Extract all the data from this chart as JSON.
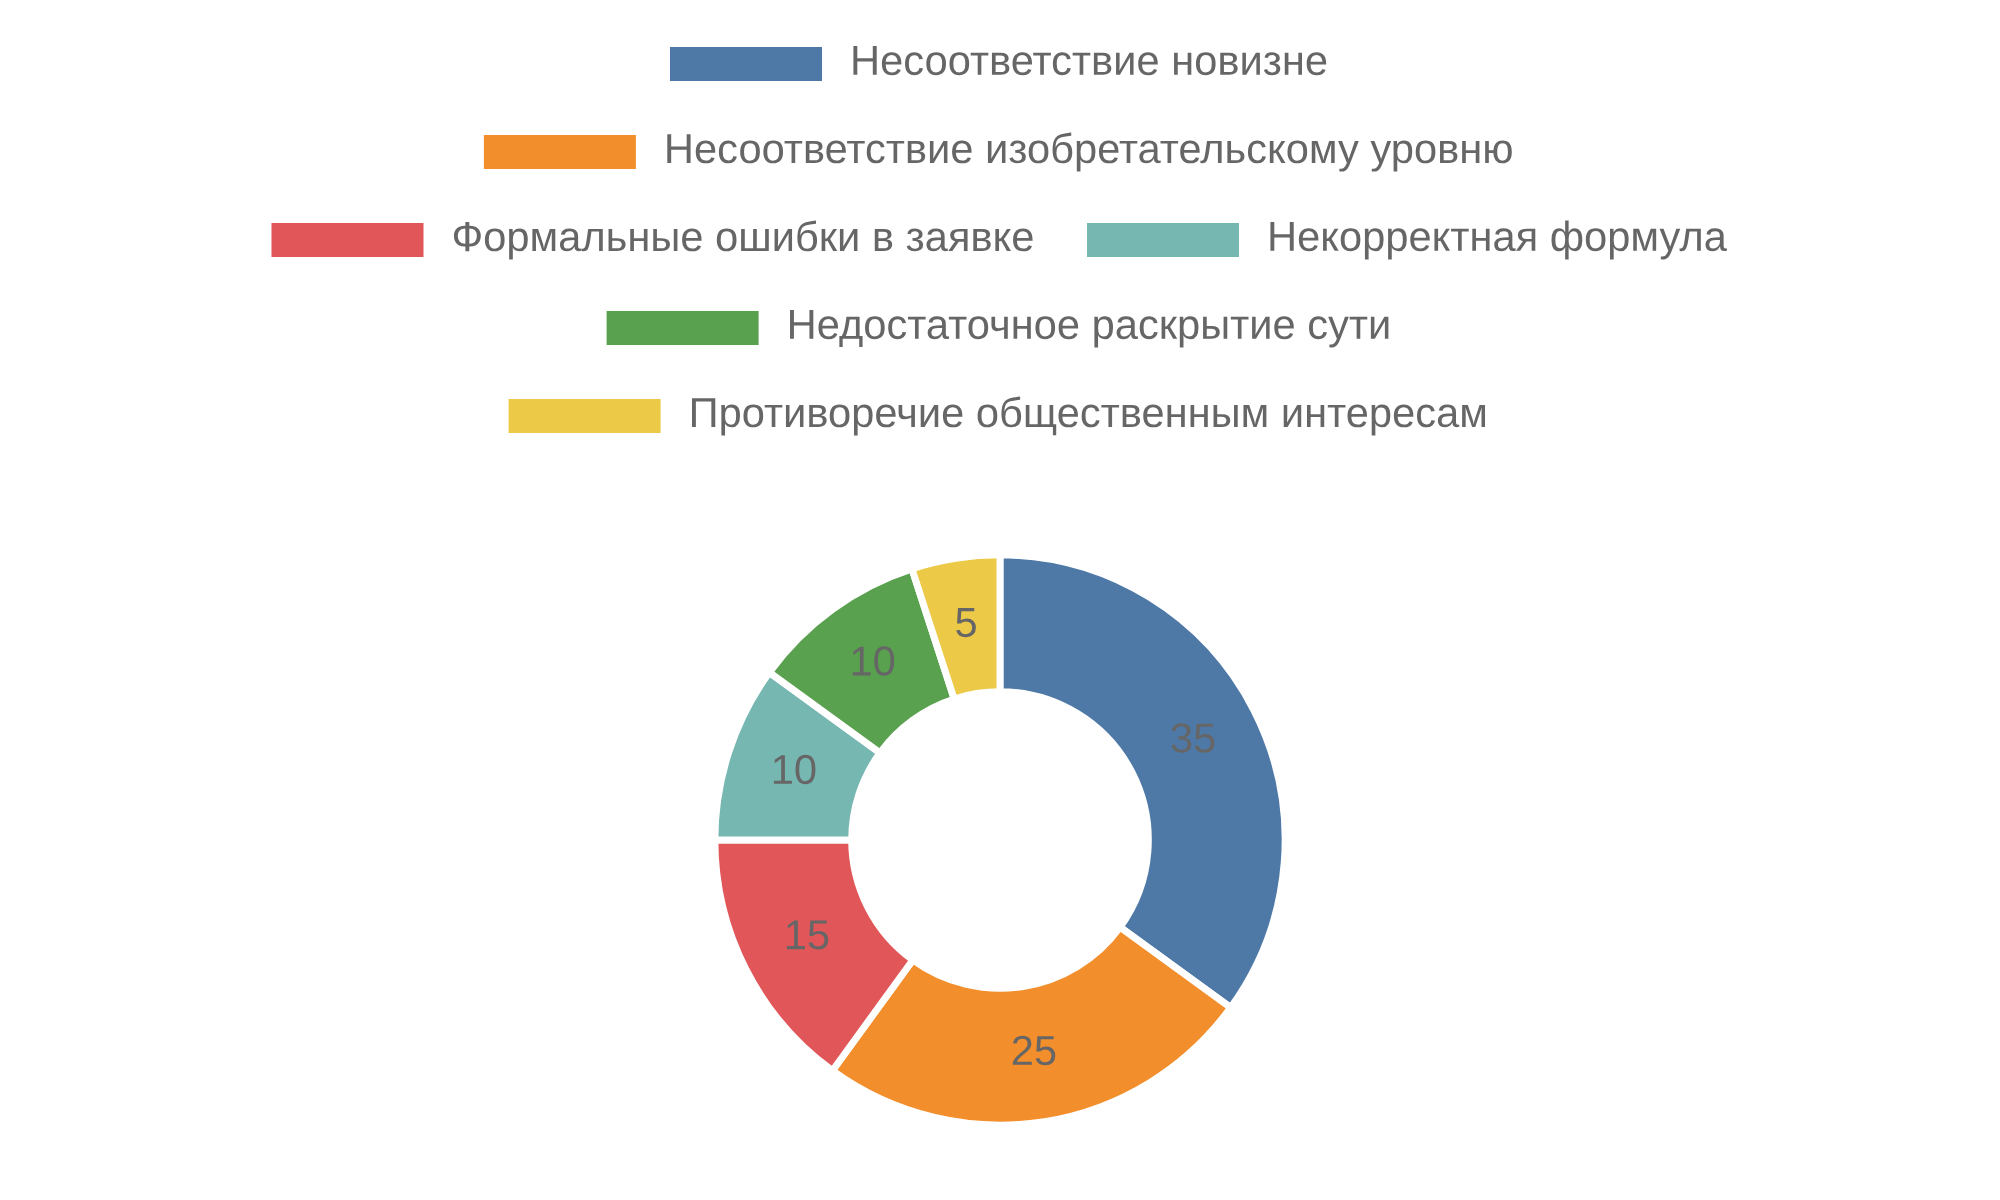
{
  "chart_data": {
    "type": "donut",
    "categories": [
      "Несоответствие новизне",
      "Несоответствие изобретательскому уровню",
      "Формальные ошибки в заявке",
      "Некорректная формула",
      "Недостаточное раскрытие сути",
      "Противоречие общественным интересам"
    ],
    "values": [
      35,
      25,
      15,
      10,
      10,
      5
    ],
    "colors": [
      "#4e79a7",
      "#f28e2b",
      "#e15759",
      "#76b7b2",
      "#59a14f",
      "#edc948"
    ],
    "data_labels": true,
    "legend": "top"
  }
}
